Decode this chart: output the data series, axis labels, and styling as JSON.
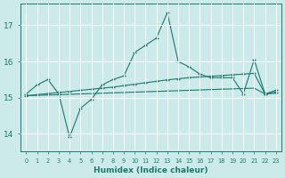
{
  "xlabel": "Humidex (Indice chaleur)",
  "x": [
    0,
    1,
    2,
    3,
    4,
    5,
    6,
    7,
    8,
    9,
    10,
    11,
    12,
    13,
    14,
    15,
    16,
    17,
    18,
    19,
    20,
    21,
    22,
    23
  ],
  "line1": [
    15.1,
    15.35,
    15.5,
    15.1,
    13.9,
    14.7,
    14.95,
    15.35,
    15.5,
    15.6,
    16.25,
    16.45,
    16.65,
    17.35,
    16.0,
    15.85,
    15.65,
    15.55,
    15.55,
    15.55,
    15.1,
    16.05,
    15.1,
    15.2
  ],
  "line2": [
    15.05,
    15.08,
    15.11,
    15.14,
    15.17,
    15.2,
    15.23,
    15.26,
    15.29,
    15.33,
    15.37,
    15.41,
    15.45,
    15.49,
    15.52,
    15.55,
    15.57,
    15.59,
    15.61,
    15.63,
    15.65,
    15.67,
    15.1,
    15.15
  ],
  "line3": [
    15.05,
    15.06,
    15.07,
    15.08,
    15.09,
    15.1,
    15.11,
    15.12,
    15.13,
    15.14,
    15.15,
    15.16,
    15.17,
    15.18,
    15.19,
    15.2,
    15.21,
    15.22,
    15.23,
    15.24,
    15.25,
    15.26,
    15.1,
    15.12
  ],
  "line_color": "#1a7a6e",
  "bg_color": "#cceaea",
  "grid_color": "#b0d8d8",
  "ylim": [
    13.5,
    17.6
  ],
  "yticks": [
    14,
    15,
    16,
    17
  ]
}
